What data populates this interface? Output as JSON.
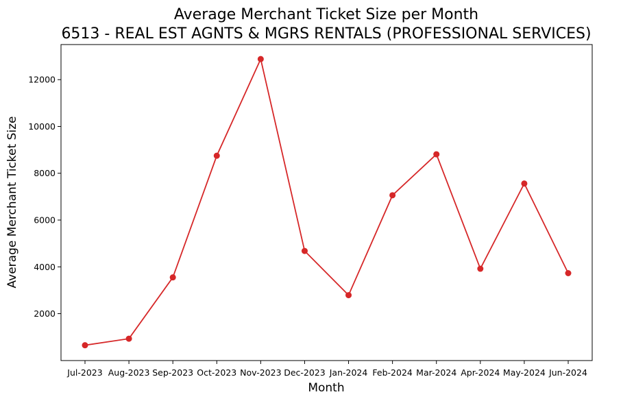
{
  "chart_data": {
    "type": "line",
    "title": "Average Merchant Ticket Size per Month",
    "subtitle": "6513 - REAL EST AGNTS & MGRS RENTALS (PROFESSIONAL SERVICES)",
    "xlabel": "Month",
    "ylabel": "Average Merchant Ticket Size",
    "categories": [
      "Jul-2023",
      "Aug-2023",
      "Sep-2023",
      "Oct-2023",
      "Nov-2023",
      "Dec-2023",
      "Jan-2024",
      "Feb-2024",
      "Mar-2024",
      "Apr-2024",
      "May-2024",
      "Jun-2024"
    ],
    "values": [
      650,
      930,
      3550,
      8750,
      12880,
      4680,
      2790,
      7060,
      8810,
      3920,
      7560,
      3730
    ],
    "yticks": [
      2000,
      4000,
      6000,
      8000,
      10000,
      12000
    ],
    "ylim": [
      -5,
      13500
    ],
    "grid": false,
    "legend": "none",
    "color": "#d62728",
    "marker": "circle"
  }
}
